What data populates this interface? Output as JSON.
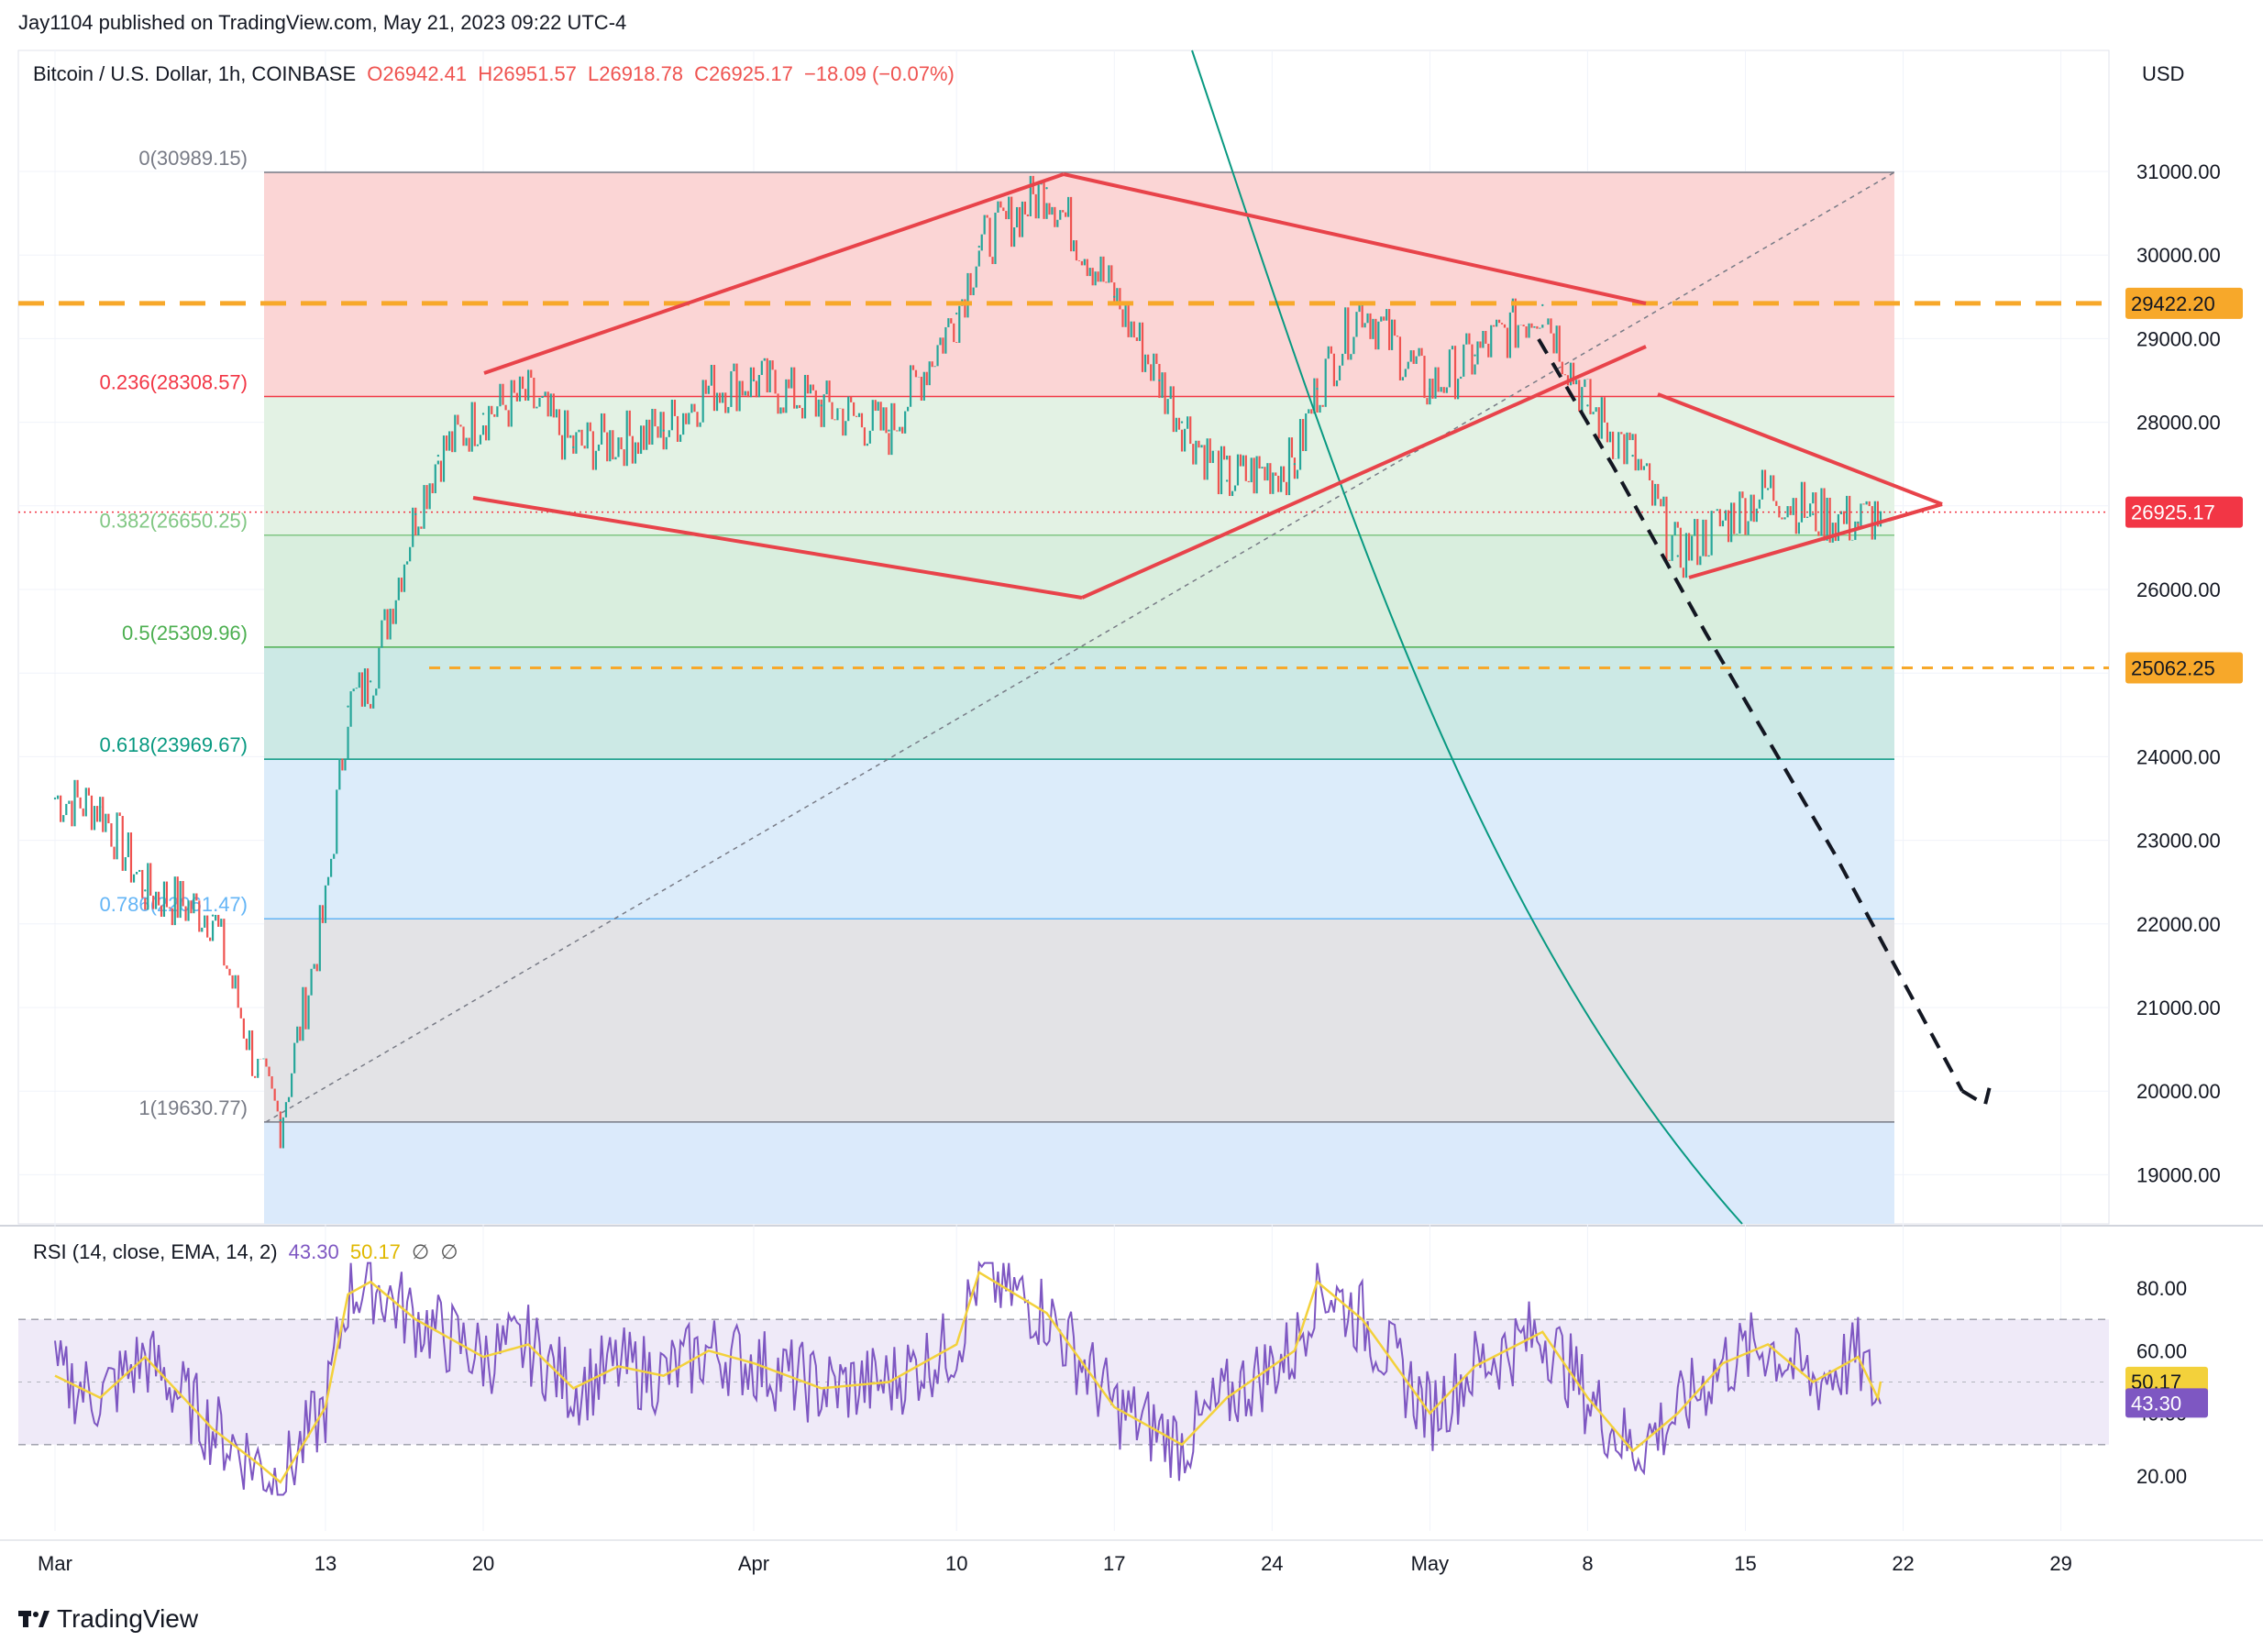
{
  "header": {
    "published_line": "Jay1104 published on TradingView.com, May 21, 2023 09:22 UTC-4"
  },
  "legend": {
    "symbol": "Bitcoin / U.S. Dollar, 1h, COINBASE",
    "open": "O26942.41",
    "high": "H26951.57",
    "low": "L26918.78",
    "close": "C26925.17",
    "change": "−18.09 (−0.07%)"
  },
  "rsi_legend": {
    "label": "RSI (14, close, EMA, 14, 2)",
    "rsi_value": "43.30",
    "ma_value": "50.17",
    "extra1": "∅",
    "extra2": "∅"
  },
  "axis": {
    "currency": "USD",
    "price_ticks": [
      "31000.00",
      "30000.00",
      "29000.00",
      "28000.00",
      "27000.00",
      "26000.00",
      "25000.00",
      "24000.00",
      "23000.00",
      "22000.00",
      "21000.00",
      "20000.00",
      "19000.00"
    ],
    "rsi_ticks": [
      "80.00",
      "60.00",
      "40.00",
      "20.00"
    ],
    "time_ticks": [
      "Mar",
      "13",
      "20",
      "Apr",
      "10",
      "17",
      "24",
      "May",
      "8",
      "15",
      "22",
      "29"
    ]
  },
  "badges": {
    "resistance": "29422.20",
    "last_price": "26925.17",
    "support": "25062.25",
    "rsi_ma": "50.17",
    "rsi_value": "43.30"
  },
  "fib_labels": [
    "0(30989.15)",
    "0.236(28308.57)",
    "0.382(26650.25)",
    "0.5(25309.96)",
    "0.618(23969.67)",
    "0.786(22061.47)",
    "1(19630.77)"
  ],
  "brand": "TradingView",
  "colors": {
    "up": "#26a69a",
    "down": "#ef5350",
    "pattern_lines": "#e8434a",
    "resistance": "#f7a82a",
    "rsi": "#7e57c2",
    "rsi_ma": "#f3d13b"
  },
  "chart_data": {
    "type": "line",
    "title": "Bitcoin / U.S. Dollar, 1h, COINBASE",
    "xlabel": "",
    "ylabel": "USD",
    "ylim": [
      18400,
      31600
    ],
    "x_ticks": [
      "Mar",
      "13",
      "20",
      "Apr",
      "10",
      "17",
      "24",
      "May",
      "8",
      "15",
      "22",
      "29"
    ],
    "series": [
      {
        "name": "Bitcoin / U.S. Dollar",
        "x": [
          "2023-03-01",
          "2023-03-03",
          "2023-03-05",
          "2023-03-08",
          "2023-03-10",
          "2023-03-11",
          "2023-03-13",
          "2023-03-14",
          "2023-03-15",
          "2023-03-17",
          "2023-03-18",
          "2023-03-20",
          "2023-03-22",
          "2023-03-24",
          "2023-03-26",
          "2023-03-28",
          "2023-03-30",
          "2023-04-01",
          "2023-04-04",
          "2023-04-07",
          "2023-04-10",
          "2023-04-11",
          "2023-04-14",
          "2023-04-17",
          "2023-04-19",
          "2023-04-20",
          "2023-04-22",
          "2023-04-25",
          "2023-04-26",
          "2023-04-28",
          "2023-05-01",
          "2023-05-03",
          "2023-05-06",
          "2023-05-08",
          "2023-05-10",
          "2023-05-12",
          "2023-05-14",
          "2023-05-16",
          "2023-05-18",
          "2023-05-20",
          "2023-05-21"
        ],
        "values": [
          23500,
          23400,
          22400,
          22100,
          20200,
          19650,
          22200,
          24600,
          24900,
          26900,
          27600,
          28100,
          28300,
          27700,
          27800,
          27900,
          28400,
          28500,
          28200,
          27900,
          29300,
          30100,
          30800,
          29500,
          28500,
          28000,
          27300,
          27500,
          28400,
          29400,
          28400,
          28800,
          29400,
          28200,
          27600,
          26400,
          26800,
          27200,
          26900,
          26800,
          26925
        ]
      }
    ],
    "fibonacci": {
      "levels": [
        {
          "ratio": "0",
          "price": 30989.15
        },
        {
          "ratio": "0.236",
          "price": 28308.57
        },
        {
          "ratio": "0.382",
          "price": 26650.25
        },
        {
          "ratio": "0.5",
          "price": 25309.96
        },
        {
          "ratio": "0.618",
          "price": 23969.67
        },
        {
          "ratio": "0.786",
          "price": 22061.47
        },
        {
          "ratio": "1",
          "price": 19630.77
        }
      ]
    },
    "horizontal_levels": {
      "resistance": 29422.2,
      "support": 25062.25,
      "last_price": 26925.17
    },
    "rsi": {
      "period": 14,
      "ylim": [
        10,
        90
      ],
      "bands": [
        30,
        70
      ],
      "last_rsi": 43.3,
      "last_ma": 50.17,
      "values": [
        52,
        45,
        58,
        35,
        24,
        18,
        42,
        78,
        82,
        70,
        66,
        58,
        62,
        48,
        55,
        52,
        60,
        56,
        48,
        50,
        62,
        85,
        72,
        42,
        34,
        30,
        45,
        60,
        82,
        70,
        40,
        55,
        66,
        45,
        28,
        40,
        56,
        62,
        50,
        58,
        43
      ]
    }
  }
}
